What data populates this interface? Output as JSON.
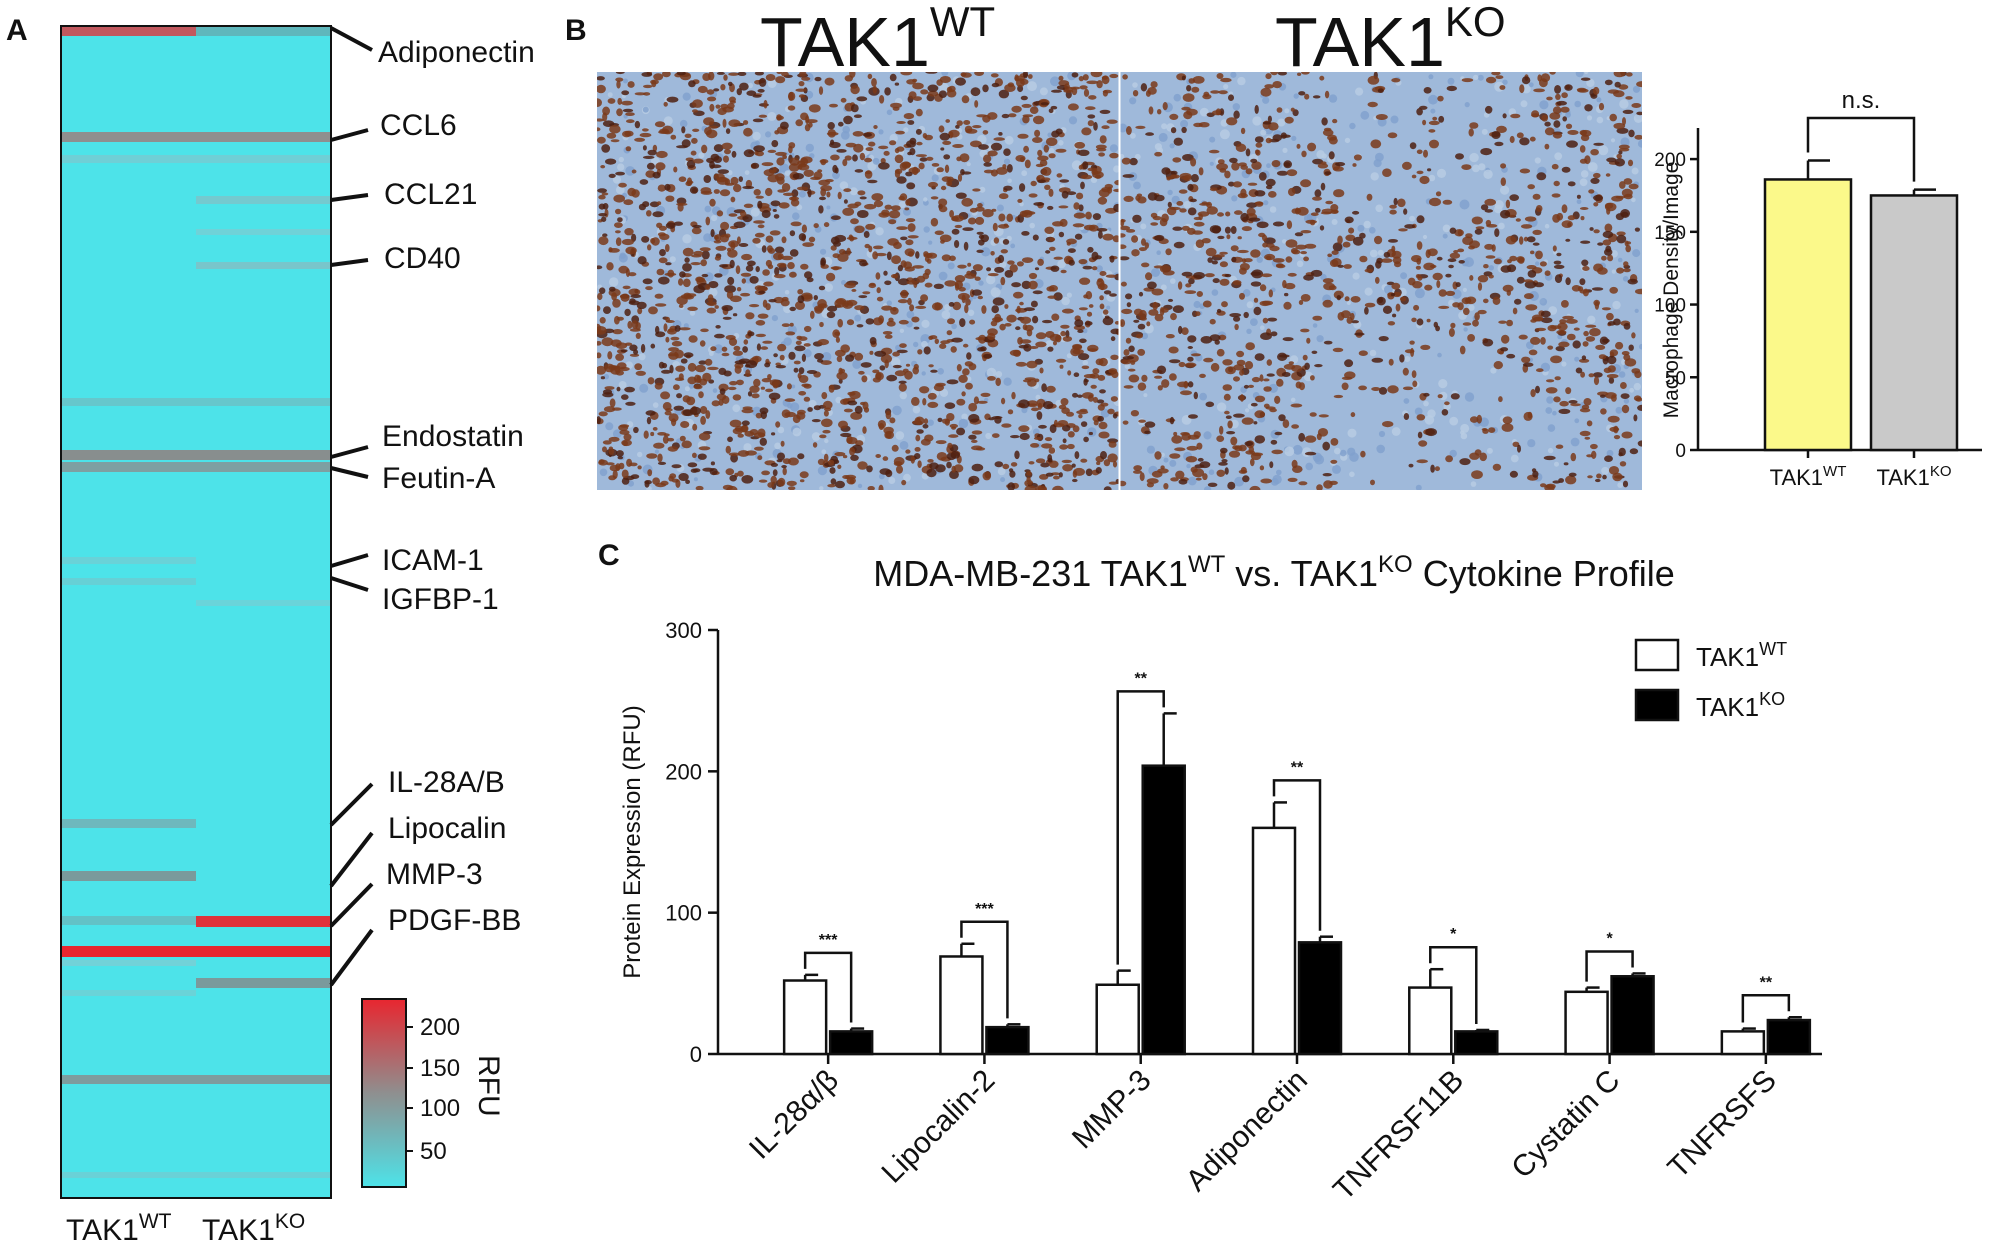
{
  "panels": {
    "a": "A",
    "b": "B",
    "c": "C"
  },
  "heatmap": {
    "columns": [
      {
        "base": "TAK1",
        "sup": "WT"
      },
      {
        "base": "TAK1",
        "sup": "KO"
      }
    ],
    "labels": [
      "Adiponectin",
      "CCL6",
      "CCL21",
      "CD40",
      "Endostatin",
      "Feutin-A",
      "ICAM-1",
      "IGFBP-1",
      "IL-28A/B",
      "Lipocalin",
      "MMP-3",
      "PDGF-BB"
    ],
    "colorbar": {
      "title": "RFU",
      "ticks": [
        "200",
        "150",
        "100",
        "50"
      ],
      "low_color": "#4de3e9",
      "mid_color": "#8f8f8f",
      "high_color": "#e8262f"
    }
  },
  "histology": {
    "left_title": {
      "base": "TAK1",
      "sup": "WT"
    },
    "right_title": {
      "base": "TAK1",
      "sup": "KO"
    },
    "stain_color": "#7a3a1a",
    "background_color": "#9fb9da"
  },
  "chart_data": [
    {
      "type": "bar",
      "categories": [
        "TAK1WT",
        "TAK1KO"
      ],
      "category_labels": [
        {
          "base": "TAK1",
          "sup": "WT"
        },
        {
          "base": "TAK1",
          "sup": "KO"
        }
      ],
      "values": [
        186,
        175
      ],
      "errors": [
        13,
        4
      ],
      "bar_colors": [
        "#fbf98a",
        "#c9c9c9"
      ],
      "ylabel": "Macrophage Density/Image",
      "ylim": [
        0,
        220
      ],
      "yticks": [
        "0",
        "50",
        "100",
        "150",
        "200"
      ],
      "annotation": "n.s."
    },
    {
      "type": "bar",
      "title": {
        "pre": "MDA-MB-231 TAK1",
        "sup1": "WT",
        "mid": " vs. TAK1",
        "sup2": "KO",
        "post": " Cytokine Profile"
      },
      "ylabel": "Protein Expression (RFU)",
      "ylim": [
        0,
        300
      ],
      "yticks": [
        "0",
        "100",
        "200",
        "300"
      ],
      "categories": [
        "IL-28α/β",
        "Lipocalin-2",
        "MMP-3",
        "Adiponectin",
        "TNFRSF11B",
        "Cystatin C",
        "TNFRSFS"
      ],
      "series": [
        {
          "name": "TAK1WT",
          "legend": {
            "base": "TAK1",
            "sup": "WT"
          },
          "fill": "#ffffff",
          "values": [
            52,
            69,
            49,
            160,
            47,
            44,
            16
          ],
          "errors": [
            4,
            9,
            10,
            18,
            13,
            3,
            2
          ]
        },
        {
          "name": "TAK1KO",
          "legend": {
            "base": "TAK1",
            "sup": "KO"
          },
          "fill": "#000000",
          "values": [
            16,
            19,
            204,
            79,
            16,
            55,
            24
          ],
          "errors": [
            2,
            2,
            37,
            4,
            1,
            2,
            2
          ]
        }
      ],
      "significance": [
        "***",
        "***",
        "**",
        "**",
        "*",
        "*",
        "**"
      ],
      "legend_position": "top-right"
    }
  ]
}
